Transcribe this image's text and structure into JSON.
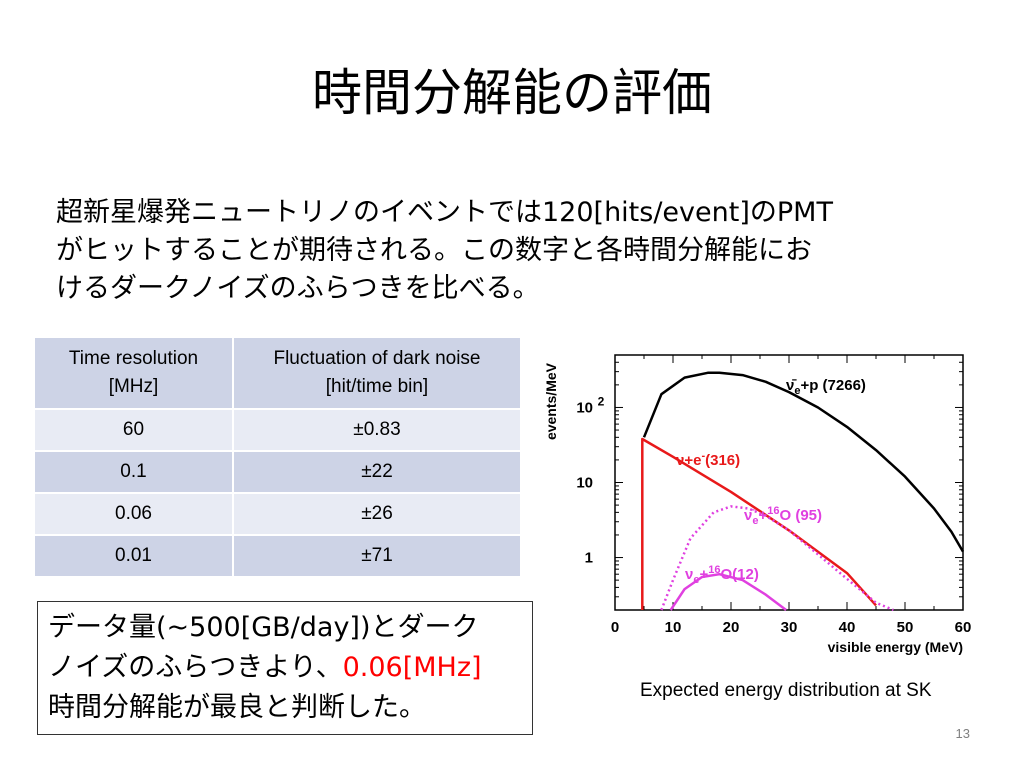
{
  "slide": {
    "title": "時間分解能の評価",
    "intro_lines": [
      "超新星爆発ニュートリノのイベントでは120[hits/event]のPMT",
      "がヒットすることが期待される。この数字と各時間分解能にお",
      "けるダークノイズのふらつきを比べる。"
    ],
    "conclusion": {
      "line1": "データ量(~500[GB/day])とダーク",
      "line2_prefix": "ノイズのふらつきより、",
      "line2_highlight": "0.06[MHz]",
      "line3": "時間分解能が最良と判断した。"
    },
    "page_number": "13"
  },
  "table": {
    "headers": [
      [
        "Time resolution",
        "[MHz]"
      ],
      [
        "Fluctuation of dark noise",
        "[hit/time bin]"
      ]
    ],
    "rows": [
      [
        "60",
        "±0.83"
      ],
      [
        "0.1",
        "±22"
      ],
      [
        "0.06",
        "±26"
      ],
      [
        "0.01",
        "±71"
      ]
    ]
  },
  "chart_caption": "Expected energy distribution at SK",
  "chart_data": {
    "type": "line",
    "xlabel": "visible energy (MeV)",
    "ylabel": "events/MeV",
    "xlim": [
      0,
      60
    ],
    "ylim": [
      0.2,
      500
    ],
    "yscale": "log",
    "x_ticks": [
      "0",
      "10",
      "20",
      "30",
      "40",
      "50",
      "60"
    ],
    "y_ticks": [
      {
        "value": 1,
        "label": "1"
      },
      {
        "value": 10,
        "label": "10"
      },
      {
        "value": 100,
        "label": "10",
        "sup": "2"
      }
    ],
    "series": [
      {
        "name": "ν̄e+p (7266)",
        "label_base": "ν̄",
        "label_sub": "e",
        "label_rest": "+p (7266)",
        "color": "#000000",
        "dash": "solid",
        "x": [
          5,
          8,
          12,
          16,
          18,
          22,
          26,
          30,
          35,
          40,
          45,
          50,
          55,
          58,
          60
        ],
        "y": [
          40,
          150,
          250,
          290,
          290,
          270,
          220,
          160,
          100,
          55,
          27,
          12,
          4.5,
          2.2,
          1.2
        ]
      },
      {
        "name": "ν+e-(316)",
        "label_base": "ν+e",
        "label_sup": "-",
        "label_rest": "(316)",
        "color": "#e8191a",
        "dash": "solid",
        "x": [
          4.7,
          4.7,
          10,
          20,
          30,
          40,
          45
        ],
        "y": [
          0.2,
          38,
          22,
          7.5,
          2.3,
          0.62,
          0.23
        ]
      },
      {
        "name": "ν̄e+16O (95)",
        "label_base": "ν̄",
        "label_sub": "e",
        "label_mid": "+",
        "label_sup": "16",
        "label_rest": "O (95)",
        "color": "#e040e0",
        "dash": "dotted",
        "x": [
          8,
          10,
          13,
          17,
          20,
          23,
          26,
          30,
          35,
          40,
          45,
          48
        ],
        "y": [
          0.2,
          0.5,
          1.8,
          4.0,
          4.8,
          4.5,
          3.6,
          2.3,
          1.1,
          0.52,
          0.25,
          0.2
        ]
      },
      {
        "name": "νe+16O(12)",
        "label_base": "ν",
        "label_sub": "e",
        "label_mid": "+",
        "label_sup": "16",
        "label_rest": "O(12)",
        "color": "#e040e0",
        "dash": "solid",
        "x": [
          9.6,
          12,
          15,
          18,
          22,
          26,
          29.5
        ],
        "y": [
          0.2,
          0.38,
          0.55,
          0.6,
          0.5,
          0.32,
          0.2
        ]
      }
    ]
  }
}
